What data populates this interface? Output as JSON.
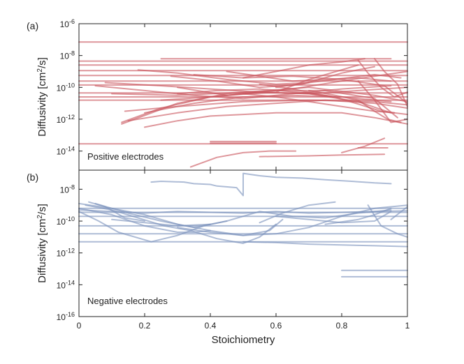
{
  "chart_data": [
    {
      "panel_label": "(a)",
      "type": "line",
      "annotation": "Positive electrodes",
      "ylabel": "Diffusivity [cm",
      "ylabel_sup": "2",
      "ylabel_tail": "/s]",
      "xlim": [
        0,
        1
      ],
      "ylim_log10": [
        -15.2,
        -6
      ],
      "yticks": [
        {
          "base": "10",
          "exp": "-6",
          "value": -6
        },
        {
          "base": "10",
          "exp": "-8",
          "value": -8
        },
        {
          "base": "10",
          "exp": "-10",
          "value": -10
        },
        {
          "base": "10",
          "exp": "-12",
          "value": -12
        },
        {
          "base": "10",
          "exp": "-14",
          "value": -14
        }
      ],
      "color": "#c9555e",
      "series": [
        {
          "x": [
            0,
            1
          ],
          "log10_y": [
            -7.15,
            -7.15
          ]
        },
        {
          "x": [
            0,
            1
          ],
          "log10_y": [
            -13.55,
            -13.55
          ]
        },
        {
          "x": [
            0,
            1
          ],
          "log10_y": [
            -8.35,
            -8.35
          ]
        },
        {
          "x": [
            0,
            1
          ],
          "log10_y": [
            -8.6,
            -8.6
          ]
        },
        {
          "x": [
            0,
            1
          ],
          "log10_y": [
            -8.95,
            -8.95
          ]
        },
        {
          "x": [
            0,
            1
          ],
          "log10_y": [
            -9.25,
            -9.25
          ]
        },
        {
          "x": [
            0,
            1
          ],
          "log10_y": [
            -9.6,
            -9.6
          ]
        },
        {
          "x": [
            0,
            1
          ],
          "log10_y": [
            -9.85,
            -9.85
          ]
        },
        {
          "x": [
            0,
            1
          ],
          "log10_y": [
            -10.35,
            -10.35
          ]
        },
        {
          "x": [
            0,
            1
          ],
          "log10_y": [
            -10.6,
            -10.6
          ]
        },
        {
          "x": [
            0,
            1
          ],
          "log10_y": [
            -10.8,
            -10.8
          ]
        },
        {
          "x": [
            0.25,
            0.95
          ],
          "log10_y": [
            -8.2,
            -8.2
          ]
        },
        {
          "x": [
            0.4,
            0.6
          ],
          "log10_y": [
            -13.4,
            -13.4
          ]
        },
        {
          "x": [
            0.4,
            0.6
          ],
          "log10_y": [
            -13.5,
            -13.5
          ]
        },
        {
          "x": [
            0.14,
            0.3,
            0.5,
            0.7,
            0.9,
            1.0
          ],
          "log10_y": [
            -11.5,
            -11.2,
            -10.9,
            -10.8,
            -10.9,
            -11.1
          ]
        },
        {
          "x": [
            0.13,
            0.25,
            0.4,
            0.55,
            0.7,
            0.85,
            0.95
          ],
          "log10_y": [
            -12.2,
            -11.3,
            -10.6,
            -10.3,
            -10.4,
            -10.9,
            -11.6
          ]
        },
        {
          "x": [
            0.13,
            0.3,
            0.45,
            0.6,
            0.75,
            0.9,
            0.97
          ],
          "log10_y": [
            -12.3,
            -11.0,
            -10.4,
            -10.2,
            -10.2,
            -10.7,
            -11.9
          ]
        },
        {
          "x": [
            0.15,
            0.3,
            0.45,
            0.6,
            0.75,
            0.9,
            1.0
          ],
          "log10_y": [
            -12.1,
            -11.6,
            -11.2,
            -11.0,
            -10.8,
            -11.0,
            -11.3
          ]
        },
        {
          "x": [
            0.2,
            0.35,
            0.5,
            0.65,
            0.8,
            0.95
          ],
          "log10_y": [
            -11.6,
            -11.0,
            -10.6,
            -10.5,
            -10.6,
            -10.9
          ]
        },
        {
          "x": [
            0.25,
            0.4,
            0.55,
            0.65,
            0.8,
            0.9,
            1.0
          ],
          "log10_y": [
            -10.8,
            -10.6,
            -10.3,
            -10.1,
            -9.6,
            -9.3,
            -9.0
          ]
        },
        {
          "x": [
            0.28,
            0.42,
            0.55,
            0.68,
            0.8,
            0.9
          ],
          "log10_y": [
            -9.3,
            -9.6,
            -10.0,
            -9.8,
            -9.1,
            -8.7
          ]
        },
        {
          "x": [
            0.3,
            0.45,
            0.6,
            0.7,
            0.85
          ],
          "log10_y": [
            -10.0,
            -10.5,
            -10.3,
            -9.5,
            -8.6
          ]
        },
        {
          "x": [
            0.18,
            0.3,
            0.45,
            0.6,
            0.7
          ],
          "log10_y": [
            -8.9,
            -9.1,
            -9.5,
            -9.8,
            -9.7
          ]
        },
        {
          "x": [
            0.08,
            0.25,
            0.4,
            0.55,
            0.7,
            0.85,
            1.0
          ],
          "log10_y": [
            -9.7,
            -9.9,
            -10.1,
            -10.3,
            -10.4,
            -10.2,
            -10.0
          ]
        },
        {
          "x": [
            0.05,
            0.2,
            0.35,
            0.5,
            0.65,
            0.8,
            0.95
          ],
          "log10_y": [
            -9.9,
            -10.2,
            -10.5,
            -10.7,
            -10.4,
            -10.1,
            -9.9
          ]
        },
        {
          "x": [
            0.3,
            0.42,
            0.55,
            0.67,
            0.78,
            0.92,
            1.0
          ],
          "log10_y": [
            -10.4,
            -10.2,
            -10.1,
            -10.3,
            -10.6,
            -11.5,
            -11.7
          ]
        },
        {
          "x": [
            0.35,
            0.5,
            0.65,
            0.8,
            0.93,
            1.0
          ],
          "log10_y": [
            -9.2,
            -9.4,
            -9.3,
            -9.5,
            -9.9,
            -11.0
          ]
        },
        {
          "x": [
            0.45,
            0.55,
            0.65,
            0.75,
            0.85,
            0.95
          ],
          "log10_y": [
            -9.0,
            -9.3,
            -9.6,
            -9.5,
            -9.4,
            -9.6
          ]
        },
        {
          "x": [
            0.6,
            0.7,
            0.82,
            0.9,
            0.98
          ],
          "log10_y": [
            -10.0,
            -9.7,
            -9.4,
            -9.2,
            -9.4
          ]
        },
        {
          "x": [
            0.5,
            0.6,
            0.7,
            0.8,
            0.87
          ],
          "log10_y": [
            -9.4,
            -9.0,
            -8.6,
            -8.4,
            -8.2
          ]
        },
        {
          "x": [
            0.55,
            0.65,
            0.72,
            0.78
          ],
          "log10_y": [
            -9.8,
            -10.1,
            -10.4,
            -10.6
          ]
        },
        {
          "x": [
            0.85,
            0.9,
            0.95,
            1.0
          ],
          "log10_y": [
            -9.6,
            -10.8,
            -12.2,
            -12.0
          ]
        },
        {
          "x": [
            0.5,
            0.6,
            0.7,
            0.8,
            0.9,
            0.96
          ],
          "log10_y": [
            -10.4,
            -10.6,
            -10.9,
            -11.2,
            -11.5,
            -11.6
          ]
        },
        {
          "x": [
            0.7,
            0.78,
            0.85,
            0.9,
            0.94,
            0.98
          ],
          "log10_y": [
            -10.2,
            -10.5,
            -10.8,
            -11.5,
            -12.0,
            -12.2
          ]
        },
        {
          "x": [
            0.9,
            0.93,
            0.97,
            1.0
          ],
          "log10_y": [
            -8.2,
            -9.0,
            -9.8,
            -11.2
          ]
        },
        {
          "x": [
            0.85,
            0.88,
            0.92,
            0.96,
            1.0
          ],
          "log10_y": [
            -8.3,
            -9.1,
            -10.0,
            -10.6,
            -10.3
          ]
        },
        {
          "x": [
            0.2,
            0.3,
            0.4,
            0.5,
            0.6,
            0.7,
            0.8,
            0.9,
            1.0
          ],
          "log10_y": [
            -12.5,
            -12.1,
            -11.8,
            -11.7,
            -11.6,
            -11.6,
            -11.6,
            -11.9,
            -12.3
          ]
        },
        {
          "x": [
            0.34,
            0.42,
            0.5,
            0.58,
            0.66
          ],
          "log10_y": [
            -15.0,
            -14.4,
            -14.1,
            -14.0,
            -14.0
          ]
        },
        {
          "x": [
            0.55,
            0.7,
            0.8,
            0.93
          ],
          "log10_y": [
            -14.35,
            -14.3,
            -14.25,
            -14.2
          ]
        },
        {
          "x": [
            0.8,
            0.87,
            0.93
          ],
          "log10_y": [
            -14.1,
            -13.7,
            -13.2
          ]
        },
        {
          "x": [
            0.85,
            0.94
          ],
          "log10_y": [
            -13.8,
            -13.8
          ]
        },
        {
          "x": [
            0.1,
            0.3,
            0.5,
            0.7,
            0.9,
            1.0
          ],
          "log10_y": [
            -10.4,
            -10.5,
            -10.3,
            -10.0,
            -10.5,
            -10.9
          ]
        }
      ]
    },
    {
      "panel_label": "(b)",
      "type": "line",
      "annotation": "Negative electrodes",
      "ylabel": "Diffusivity [cm",
      "ylabel_sup": "2",
      "ylabel_tail": "/s]",
      "xlabel": "Stoichiometry",
      "xlim": [
        0,
        1
      ],
      "xticks": [
        "0",
        "0.2",
        "0.4",
        "0.6",
        "0.8",
        "1"
      ],
      "ylim_log10": [
        -16,
        -6.8
      ],
      "yticks": [
        {
          "base": "10",
          "exp": "-8",
          "value": -8
        },
        {
          "base": "10",
          "exp": "-10",
          "value": -10
        },
        {
          "base": "10",
          "exp": "-12",
          "value": -12
        },
        {
          "base": "10",
          "exp": "-14",
          "value": -14
        },
        {
          "base": "10",
          "exp": "-16",
          "value": -16
        }
      ],
      "color": "#7d93bd",
      "series": [
        {
          "x": [
            0,
            1
          ],
          "log10_y": [
            -9.2,
            -9.2
          ]
        },
        {
          "x": [
            0,
            1
          ],
          "log10_y": [
            -9.45,
            -9.45
          ]
        },
        {
          "x": [
            0,
            1
          ],
          "log10_y": [
            -9.7,
            -9.7
          ]
        },
        {
          "x": [
            0,
            1
          ],
          "log10_y": [
            -10.3,
            -10.3
          ]
        },
        {
          "x": [
            0,
            1
          ],
          "log10_y": [
            -10.8,
            -10.8
          ]
        },
        {
          "x": [
            0,
            1
          ],
          "log10_y": [
            -11.3,
            -11.3
          ]
        },
        {
          "x": [
            0.8,
            1.0
          ],
          "log10_y": [
            -13.1,
            -13.1
          ]
        },
        {
          "x": [
            0.8,
            1.0
          ],
          "log10_y": [
            -13.5,
            -13.5
          ]
        },
        {
          "x": [
            0.22,
            0.25,
            0.32,
            0.35,
            0.4,
            0.42,
            0.48,
            0.5,
            0.5,
            0.55,
            0.6,
            0.68,
            0.75,
            0.83,
            0.9,
            0.95
          ],
          "log10_y": [
            -7.55,
            -7.5,
            -7.55,
            -7.65,
            -7.7,
            -7.8,
            -7.9,
            -8.4,
            -7.0,
            -7.15,
            -7.25,
            -7.3,
            -7.4,
            -7.5,
            -7.6,
            -7.65
          ]
        },
        {
          "x": [
            0,
            0.1,
            0.2,
            0.3,
            0.4,
            0.5,
            0.6,
            0.7,
            0.8,
            0.9,
            1.0
          ],
          "log10_y": [
            -8.9,
            -9.2,
            -9.6,
            -10.2,
            -10.6,
            -10.9,
            -10.8,
            -10.4,
            -9.7,
            -9.2,
            -9.0
          ]
        },
        {
          "x": [
            0,
            0.06,
            0.12,
            0.22,
            0.3,
            0.38,
            0.45
          ],
          "log10_y": [
            -9.4,
            -10.0,
            -10.7,
            -11.3,
            -10.9,
            -10.3,
            -10.0
          ]
        },
        {
          "x": [
            0.05,
            0.15,
            0.25,
            0.35,
            0.45,
            0.55,
            0.65,
            0.75,
            0.85,
            0.95
          ],
          "log10_y": [
            -8.9,
            -9.5,
            -10.0,
            -10.4,
            -10.0,
            -9.4,
            -9.7,
            -9.8,
            -9.5,
            -9.3
          ]
        },
        {
          "x": [
            0,
            0.1,
            0.2,
            0.25,
            0.3,
            0.35,
            0.4
          ],
          "log10_y": [
            -9.2,
            -9.6,
            -10.3,
            -10.5,
            -10.7,
            -10.7,
            -10.6
          ]
        },
        {
          "x": [
            0.02,
            0.1,
            0.18,
            0.26,
            0.34,
            0.42,
            0.5,
            0.55,
            0.6
          ],
          "log10_y": [
            -9.0,
            -9.3,
            -9.8,
            -10.3,
            -10.6,
            -11.1,
            -11.4,
            -11.0,
            -10.2
          ]
        },
        {
          "x": [
            0.3,
            0.4,
            0.5,
            0.58,
            0.62
          ],
          "log10_y": [
            -10.4,
            -10.7,
            -10.9,
            -10.6,
            -9.9
          ]
        },
        {
          "x": [
            0.55,
            0.62,
            0.7,
            0.78
          ],
          "log10_y": [
            -10.1,
            -9.5,
            -9.0,
            -8.8
          ]
        },
        {
          "x": [
            0.6,
            0.7,
            0.8,
            0.9,
            0.95
          ],
          "log10_y": [
            -9.7,
            -9.9,
            -10.1,
            -10.0,
            -9.4
          ]
        },
        {
          "x": [
            0.75,
            0.85,
            0.9,
            0.95
          ],
          "log10_y": [
            -10.2,
            -9.9,
            -9.6,
            -9.2
          ]
        },
        {
          "x": [
            0.88,
            0.92,
            0.97,
            1.0
          ],
          "log10_y": [
            -9.0,
            -10.3,
            -10.8,
            -11.0
          ]
        },
        {
          "x": [
            0.95,
            1.0
          ],
          "log10_y": [
            -9.9,
            -9.1
          ]
        },
        {
          "x": [
            0.5,
            0.6,
            0.7,
            0.8,
            0.9,
            1.0
          ],
          "log10_y": [
            -11.3,
            -11.35,
            -11.45,
            -11.5,
            -11.55,
            -11.6
          ]
        },
        {
          "x": [
            0,
            0.1,
            0.2,
            0.3,
            0.4,
            0.5,
            0.6,
            0.7,
            0.8,
            0.9,
            1.0
          ],
          "log10_y": [
            -9.3,
            -9.4,
            -9.5,
            -9.4,
            -9.45,
            -9.5,
            -9.4,
            -9.5,
            -9.45,
            -9.4,
            -9.35
          ]
        },
        {
          "x": [
            0.1,
            0.2,
            0.3,
            0.4
          ],
          "log10_y": [
            -9.9,
            -10.1,
            -10.3,
            -10.2
          ]
        },
        {
          "x": [
            0.03,
            0.08,
            0.14,
            0.2
          ],
          "log10_y": [
            -8.8,
            -9.1,
            -9.8,
            -10.0
          ]
        }
      ]
    }
  ]
}
